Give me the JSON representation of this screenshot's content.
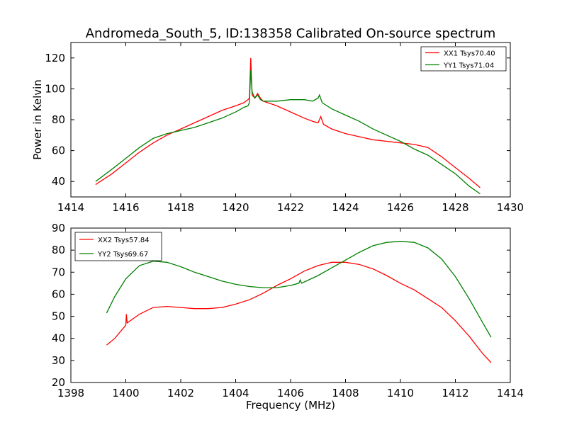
{
  "figure": {
    "title": "Andromeda_South_5, ID:138358 Calibrated On-source spectrum"
  },
  "chart_data": [
    {
      "type": "line",
      "title": "Andromeda_South_5, ID:138358 Calibrated On-source spectrum",
      "xlabel": "",
      "ylabel": "Power in Kelvin",
      "xlim": [
        1414,
        1430
      ],
      "ylim": [
        30,
        130
      ],
      "xticks": [
        1414,
        1416,
        1418,
        1420,
        1422,
        1424,
        1426,
        1428,
        1430
      ],
      "xtick_labels": [
        "1414",
        "1416",
        "1418",
        "1420",
        "1422",
        "1424",
        "1426",
        "1428",
        "1430"
      ],
      "yticks": [
        40,
        60,
        80,
        100,
        120
      ],
      "ytick_labels": [
        "40",
        "60",
        "80",
        "100",
        "120"
      ],
      "grid": false,
      "legend_position": "top-right",
      "series": [
        {
          "name": "XX1 Tsys70.40",
          "color": "#ff0000",
          "points": [
            [
              1414.9,
              38
            ],
            [
              1415.5,
              45
            ],
            [
              1416,
              52
            ],
            [
              1416.5,
              59
            ],
            [
              1417,
              65
            ],
            [
              1417.5,
              70
            ],
            [
              1418,
              74
            ],
            [
              1418.5,
              78
            ],
            [
              1419,
              82
            ],
            [
              1419.5,
              86
            ],
            [
              1420,
              89
            ],
            [
              1420.3,
              91
            ],
            [
              1420.45,
              93
            ],
            [
              1420.5,
              94
            ],
            [
              1420.55,
              120
            ],
            [
              1420.6,
              96
            ],
            [
              1420.7,
              94
            ],
            [
              1420.8,
              97
            ],
            [
              1420.9,
              94
            ],
            [
              1421,
              92
            ],
            [
              1421.5,
              89
            ],
            [
              1422,
              85
            ],
            [
              1422.5,
              81
            ],
            [
              1422.8,
              79
            ],
            [
              1423,
              78
            ],
            [
              1423.1,
              82
            ],
            [
              1423.2,
              77
            ],
            [
              1423.5,
              74
            ],
            [
              1424,
              71
            ],
            [
              1424.5,
              69
            ],
            [
              1425,
              67
            ],
            [
              1425.5,
              66
            ],
            [
              1426,
              65
            ],
            [
              1426.5,
              64
            ],
            [
              1427,
              62
            ],
            [
              1427.5,
              56
            ],
            [
              1428,
              49
            ],
            [
              1428.5,
              42
            ],
            [
              1428.9,
              36
            ]
          ]
        },
        {
          "name": "YY1 Tsys71.04",
          "color": "#008000",
          "points": [
            [
              1414.9,
              40
            ],
            [
              1415.5,
              48
            ],
            [
              1416,
              55
            ],
            [
              1416.5,
              62
            ],
            [
              1417,
              68
            ],
            [
              1417.5,
              71
            ],
            [
              1418,
              73
            ],
            [
              1418.5,
              75
            ],
            [
              1419,
              78
            ],
            [
              1419.5,
              81
            ],
            [
              1420,
              85
            ],
            [
              1420.3,
              88
            ],
            [
              1420.45,
              89
            ],
            [
              1420.5,
              91
            ],
            [
              1420.55,
              112
            ],
            [
              1420.6,
              98
            ],
            [
              1420.7,
              94
            ],
            [
              1420.8,
              96
            ],
            [
              1420.9,
              93
            ],
            [
              1421,
              92
            ],
            [
              1421.5,
              92
            ],
            [
              1422,
              93
            ],
            [
              1422.5,
              93
            ],
            [
              1422.8,
              92
            ],
            [
              1423,
              94
            ],
            [
              1423.05,
              96
            ],
            [
              1423.15,
              91
            ],
            [
              1423.5,
              87
            ],
            [
              1424,
              83
            ],
            [
              1424.5,
              79
            ],
            [
              1425,
              74
            ],
            [
              1425.5,
              70
            ],
            [
              1426,
              66
            ],
            [
              1426.5,
              61
            ],
            [
              1427,
              57
            ],
            [
              1427.5,
              51
            ],
            [
              1428,
              45
            ],
            [
              1428.5,
              37
            ],
            [
              1428.9,
              32
            ]
          ]
        }
      ]
    },
    {
      "type": "line",
      "title": "",
      "xlabel": "Frequency (MHz)",
      "ylabel": "",
      "xlim": [
        1398,
        1414
      ],
      "ylim": [
        20,
        90
      ],
      "xticks": [
        1398,
        1400,
        1402,
        1404,
        1406,
        1408,
        1410,
        1412,
        1414
      ],
      "xtick_labels": [
        "1398",
        "1400",
        "1402",
        "1404",
        "1406",
        "1408",
        "1410",
        "1412",
        "1414"
      ],
      "yticks": [
        20,
        30,
        40,
        50,
        60,
        70,
        80,
        90
      ],
      "ytick_labels": [
        "20",
        "30",
        "40",
        "50",
        "60",
        "70",
        "80",
        "90"
      ],
      "grid": false,
      "legend_position": "top-left",
      "series": [
        {
          "name": "XX2 Tsys57.84",
          "color": "#ff0000",
          "points": [
            [
              1399.3,
              37
            ],
            [
              1399.6,
              40
            ],
            [
              1400,
              46
            ],
            [
              1400.02,
              51
            ],
            [
              1400.05,
              47
            ],
            [
              1400.5,
              51
            ],
            [
              1401,
              54
            ],
            [
              1401.5,
              54.5
            ],
            [
              1402,
              54
            ],
            [
              1402.5,
              53.5
            ],
            [
              1403,
              53.5
            ],
            [
              1403.5,
              54
            ],
            [
              1404,
              55.5
            ],
            [
              1404.5,
              57.5
            ],
            [
              1405,
              60.5
            ],
            [
              1405.5,
              64
            ],
            [
              1406,
              67
            ],
            [
              1406.5,
              70.5
            ],
            [
              1407,
              73
            ],
            [
              1407.5,
              74.5
            ],
            [
              1408,
              74.5
            ],
            [
              1408.5,
              73.5
            ],
            [
              1409,
              71.5
            ],
            [
              1409.5,
              68.5
            ],
            [
              1410,
              65
            ],
            [
              1410.5,
              62
            ],
            [
              1411,
              58
            ],
            [
              1411.5,
              54
            ],
            [
              1412,
              48
            ],
            [
              1412.5,
              41
            ],
            [
              1413,
              33
            ],
            [
              1413.3,
              29
            ]
          ]
        },
        {
          "name": "YY2 Tsys69.67",
          "color": "#008000",
          "points": [
            [
              1399.3,
              51.5
            ],
            [
              1399.6,
              59
            ],
            [
              1400,
              67
            ],
            [
              1400.5,
              73
            ],
            [
              1401,
              75
            ],
            [
              1401.5,
              74.5
            ],
            [
              1402,
              72.5
            ],
            [
              1402.5,
              70
            ],
            [
              1403,
              68
            ],
            [
              1403.5,
              66
            ],
            [
              1404,
              64.5
            ],
            [
              1404.5,
              63.5
            ],
            [
              1405,
              63
            ],
            [
              1405.5,
              63
            ],
            [
              1406,
              64
            ],
            [
              1406.3,
              65
            ],
            [
              1406.35,
              66.5
            ],
            [
              1406.4,
              65
            ],
            [
              1407,
              68.5
            ],
            [
              1407.5,
              72
            ],
            [
              1408,
              75.5
            ],
            [
              1408.5,
              79
            ],
            [
              1409,
              82
            ],
            [
              1409.5,
              83.5
            ],
            [
              1410,
              84
            ],
            [
              1410.5,
              83.5
            ],
            [
              1411,
              81
            ],
            [
              1411.5,
              76
            ],
            [
              1412,
              68
            ],
            [
              1412.5,
              58
            ],
            [
              1413,
              47
            ],
            [
              1413.3,
              40.5
            ]
          ]
        }
      ]
    }
  ]
}
